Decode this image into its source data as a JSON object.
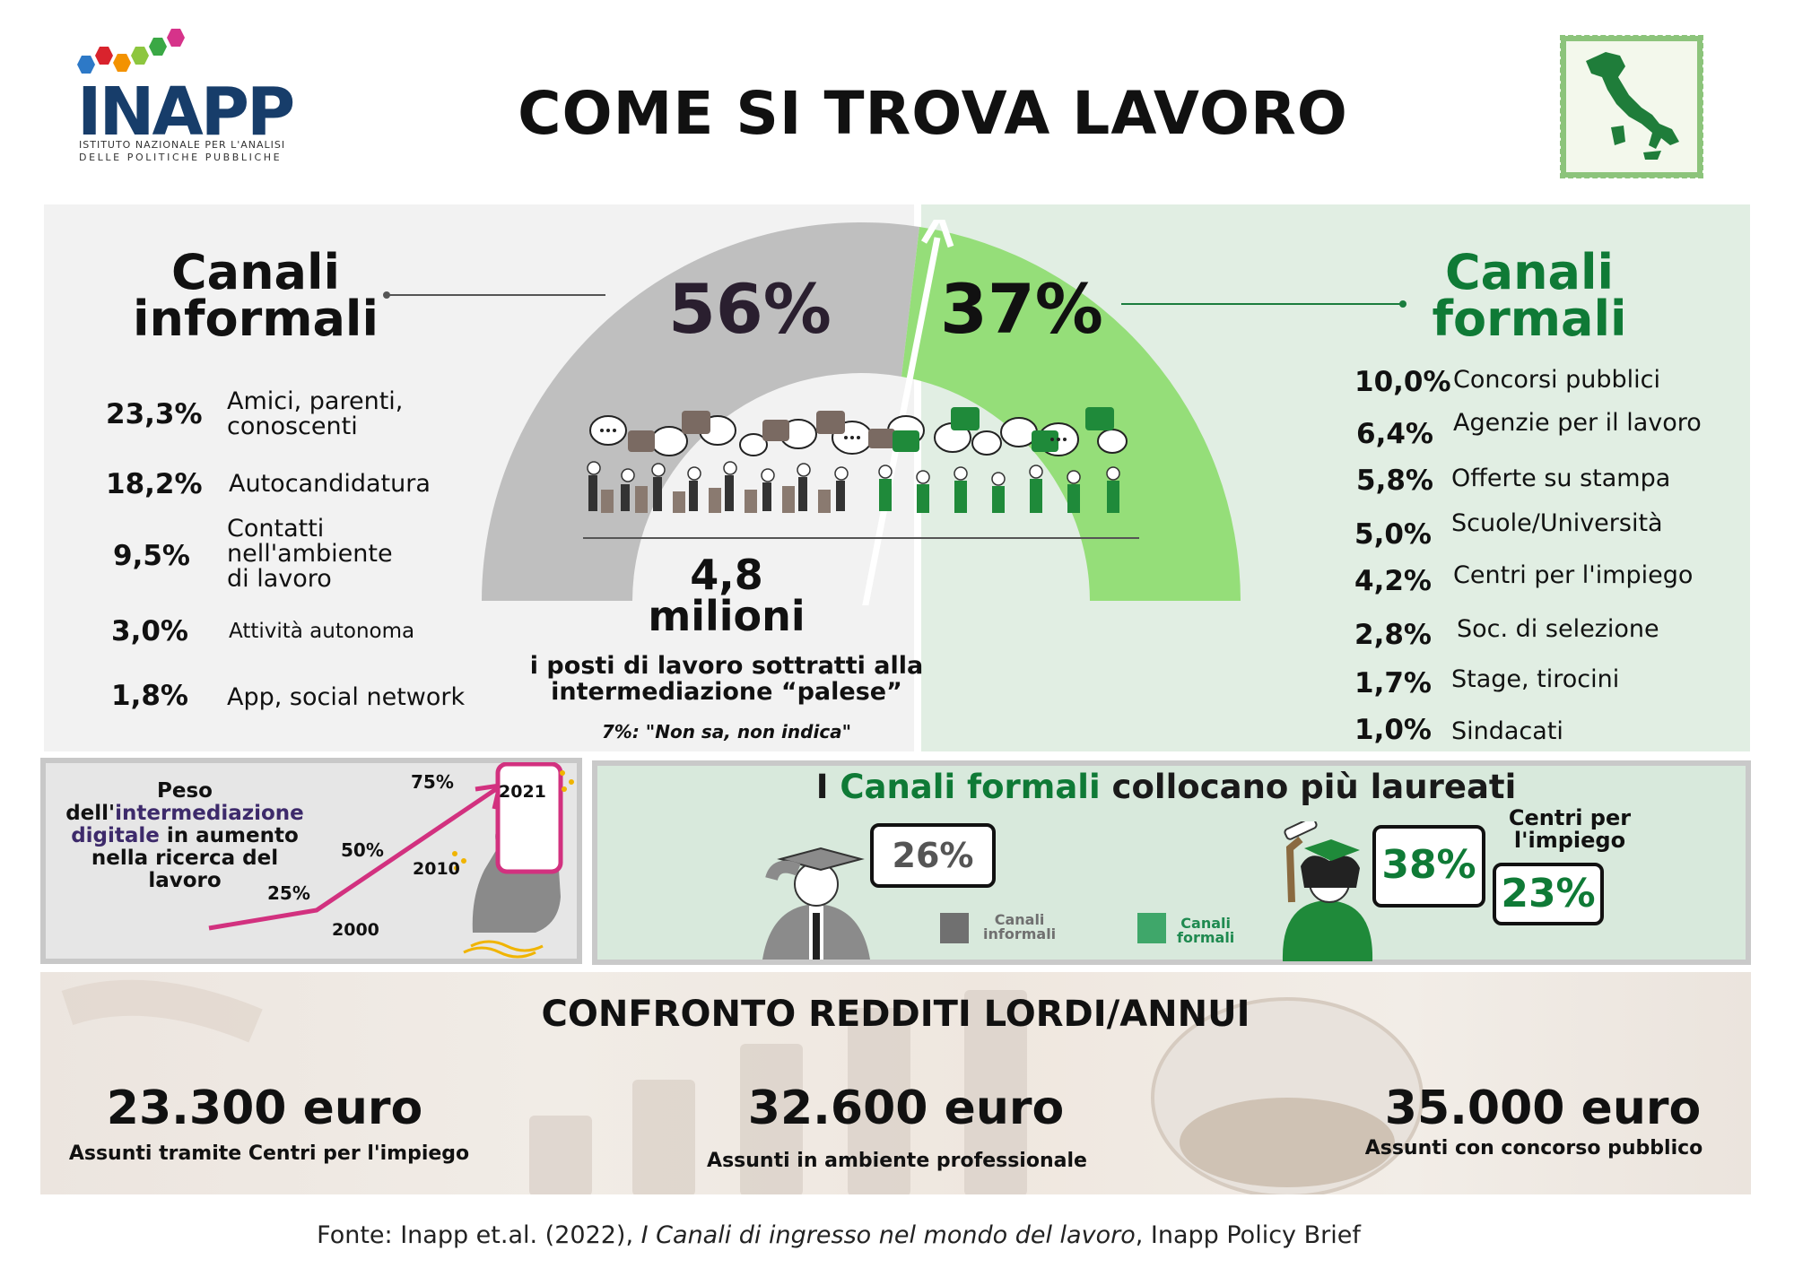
{
  "header": {
    "logo_text": "INAPP",
    "logo_sub_line1": "ISTITUTO NAZIONALE PER L'ANALISI",
    "logo_sub_line2": "DELLE POLITICHE PUBBLICHE",
    "title": "COME SI TROVA LAVORO"
  },
  "colors": {
    "informal_gray": "#bfbfbf",
    "formal_green": "#95de79",
    "dark_green": "#0f7a36",
    "pink": "#d2317f"
  },
  "informal": {
    "title_line1": "Canali",
    "title_line2": "informali",
    "share": "56%",
    "share_value": 56,
    "items": [
      {
        "pct": "23,3%",
        "label1": "Amici, parenti,",
        "label2": "conoscenti",
        "label3": ""
      },
      {
        "pct": "18,2%",
        "label1": "Autocandidatura",
        "label2": "",
        "label3": ""
      },
      {
        "pct": "9,5%",
        "label1": "Contatti",
        "label2": "nell'ambiente",
        "label3": "di lavoro"
      },
      {
        "pct": "3,0%",
        "label1": "Attività autonoma",
        "label2": "",
        "label3": ""
      },
      {
        "pct": "1,8%",
        "label1": "App, social network",
        "label2": "",
        "label3": ""
      }
    ]
  },
  "formal": {
    "title_line1": "Canali",
    "title_line2": "formali",
    "share": "37%",
    "share_value": 37,
    "items": [
      {
        "pct": "10,0%",
        "label": "Concorsi pubblici"
      },
      {
        "pct": "6,4%",
        "label": "Agenzie per il lavoro"
      },
      {
        "pct": "5,8%",
        "label": "Offerte su stampa"
      },
      {
        "pct": "5,0%",
        "label": "Scuole/Università"
      },
      {
        "pct": "4,2%",
        "label": "Centri per l'impiego"
      },
      {
        "pct": "2,8%",
        "label": "Soc. di selezione"
      },
      {
        "pct": "1,7%",
        "label": "Stage, tirocini"
      },
      {
        "pct": "1,0%",
        "label": "Sindacati"
      }
    ]
  },
  "center": {
    "million_line1": "4,8",
    "million_line2": "milioni",
    "desc_line1": "i posti di lavoro sottratti alla",
    "desc_line2": "intermediazione “palese”",
    "note": "7%: \"Non sa, non indica\""
  },
  "digital": {
    "text_line1": "Peso",
    "text_line2a": "dell'",
    "text_line2b": "intermediazione",
    "text_line3a": "digitale",
    "text_line3b": " in aumento",
    "text_line4": "nella ricerca del",
    "text_line5": "lavoro",
    "points": [
      {
        "year": "2000",
        "pct": "25%"
      },
      {
        "year": "2010",
        "pct": "50%"
      },
      {
        "year": "2021",
        "pct": "75%"
      }
    ]
  },
  "laureati": {
    "title_a": "I ",
    "title_b": "Canali formali",
    "title_c": " collocano più laureati",
    "informal_pct": "26%",
    "formal_pct": "38%",
    "centri_pct": "23%",
    "centri_label_line1": "Centri per",
    "centri_label_line2": "l'impiego",
    "legend_informal_line1": "Canali",
    "legend_informal_line2": "informali",
    "legend_formal_line1": "Canali",
    "legend_formal_line2": "formali"
  },
  "redditi": {
    "title": "CONFRONTO REDDITI LORDI/ANNUI",
    "items": [
      {
        "amount": "23.300 euro",
        "label": "Assunti tramite Centri per l'impiego"
      },
      {
        "amount": "32.600 euro",
        "label": "Assunti in ambiente professionale"
      },
      {
        "amount": "35.000 euro",
        "label": "Assunti con concorso pubblico"
      }
    ]
  },
  "footer": {
    "fonte_a": "Fonte: Inapp et.al. (2022), ",
    "fonte_b": "I Canali di ingresso nel mondo del lavoro",
    "fonte_c": ", Inapp Policy Brief"
  }
}
